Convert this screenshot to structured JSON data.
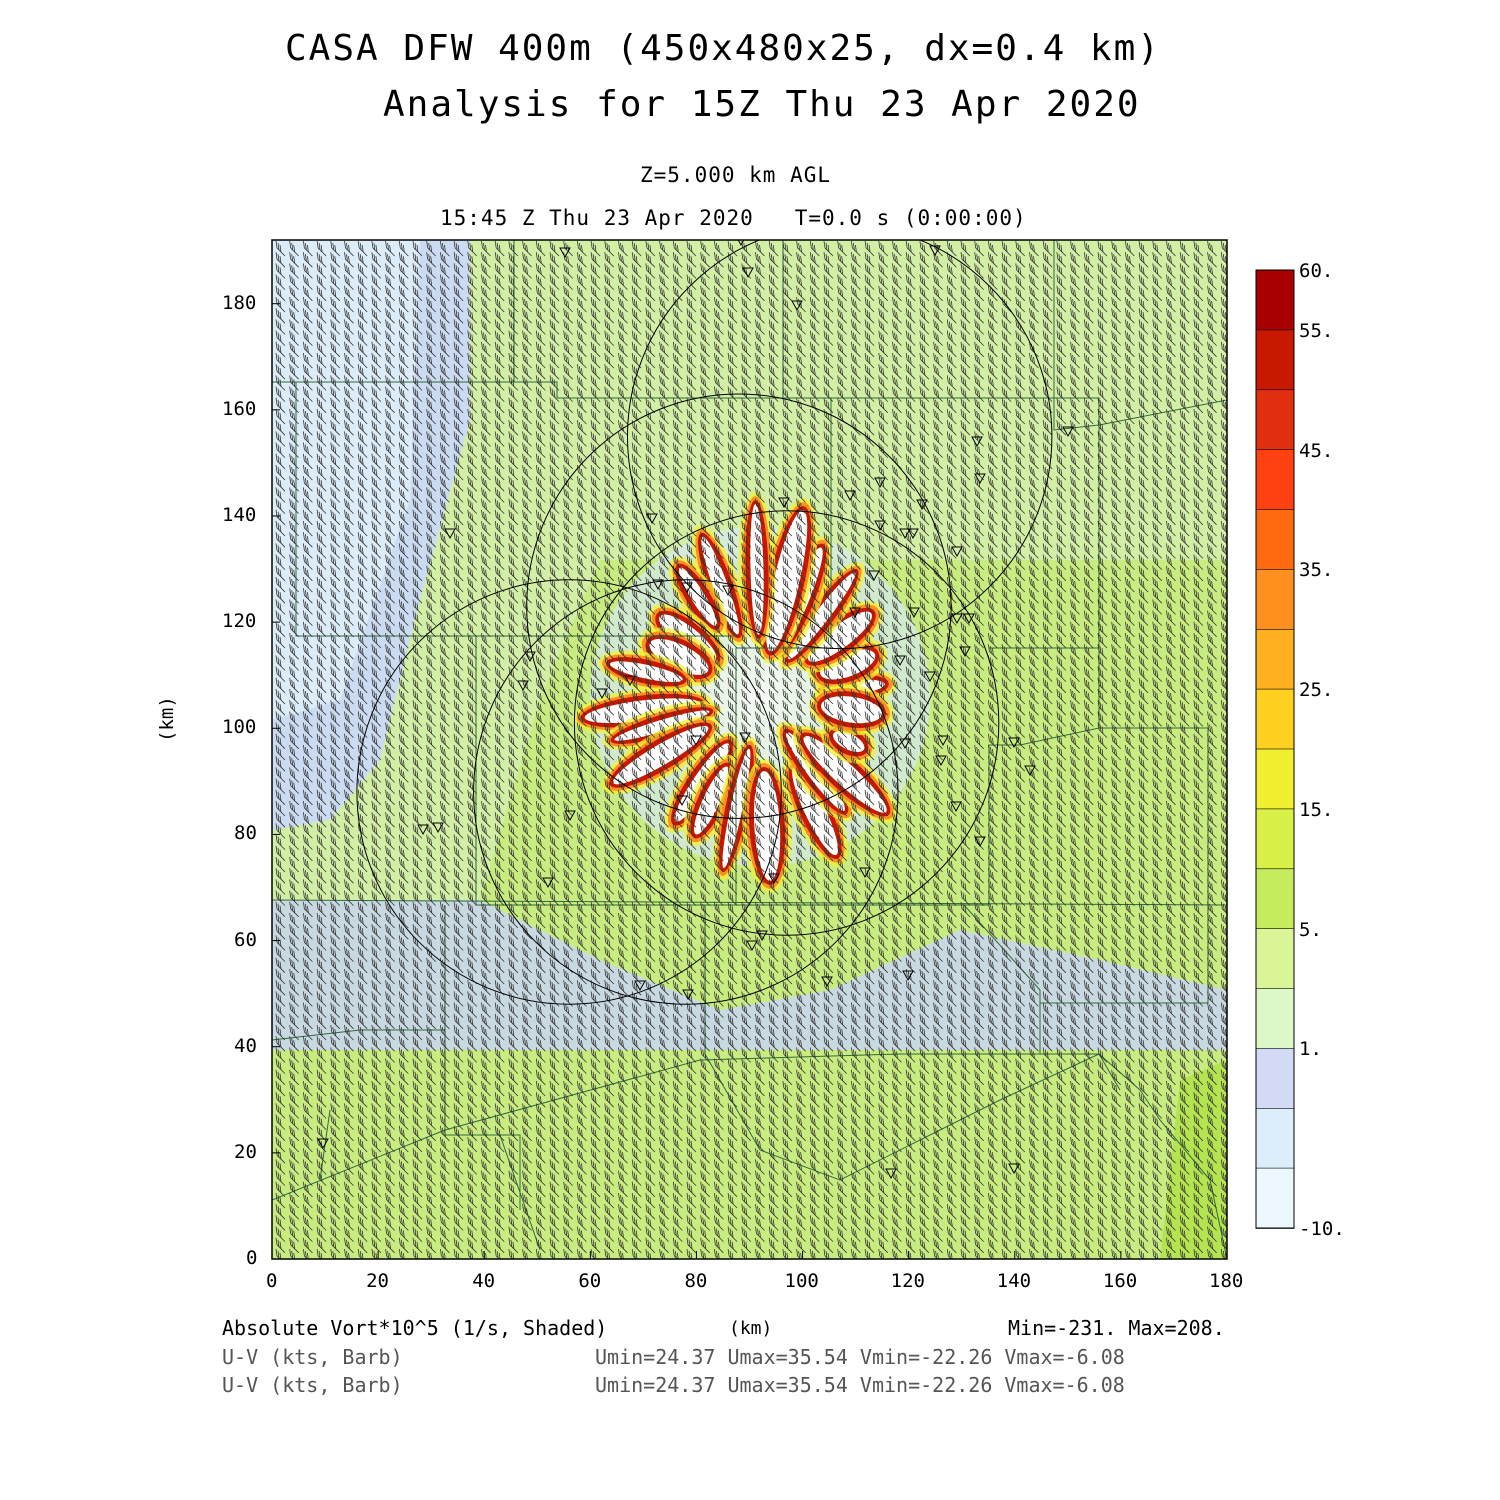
{
  "header": {
    "title_line1": "CASA DFW 400m (450x480x25, dx=0.4 km)",
    "title_line2": "Analysis for 15Z Thu 23 Apr 2020",
    "level": "Z=5.000 km AGL",
    "valid_time": "15:45 Z Thu 23 Apr 2020   T=0.0 s (0:00:00)"
  },
  "axes": {
    "x_label": "(km)",
    "y_label": "(km)",
    "x_ticks": [
      "0",
      "20",
      "40",
      "60",
      "80",
      "100",
      "120",
      "140",
      "160",
      "180"
    ],
    "y_ticks": [
      "0",
      "20",
      "40",
      "60",
      "80",
      "100",
      "120",
      "140",
      "160",
      "180"
    ]
  },
  "colorbar": {
    "labels": [
      "60.",
      "55.",
      "45.",
      "35.",
      "25.",
      "15.",
      "5.",
      "1.",
      "-10."
    ],
    "colors": [
      "#a80000",
      "#c81800",
      "#e03010",
      "#ff4010",
      "#ff6a10",
      "#ff9020",
      "#ffb020",
      "#ffd020",
      "#f0f030",
      "#d8f048",
      "#c4ec5c",
      "#daf498",
      "#dcf8c8",
      "#d2daf6",
      "#dceefa",
      "#ecf8fe"
    ]
  },
  "footer": {
    "field_label": "Absolute Vort*10^5 (1/s, Shaded)",
    "units_label": "(km)",
    "minmax": "Min=-231. Max=208.",
    "barb_label_1": "U-V (kts, Barb)",
    "barb_stats_1": "Umin=24.37 Umax=35.54 Vmin=-22.26 Vmax=-6.08",
    "barb_label_2": "U-V (kts, Barb)",
    "barb_stats_2": "Umin=24.37 Umax=35.54 Vmin=-22.26 Vmax=-6.08"
  },
  "map": {
    "domain_km": {
      "x": [
        0,
        180
      ],
      "y": [
        0,
        192
      ]
    },
    "background_color": "#c8ec80",
    "radar_sites_km": [
      [
        107,
        155
      ],
      [
        88,
        123
      ],
      [
        97,
        101
      ],
      [
        78,
        88
      ],
      [
        56,
        88
      ]
    ],
    "radar_range_km": 40,
    "vortex_center_km": [
      92,
      106
    ]
  }
}
